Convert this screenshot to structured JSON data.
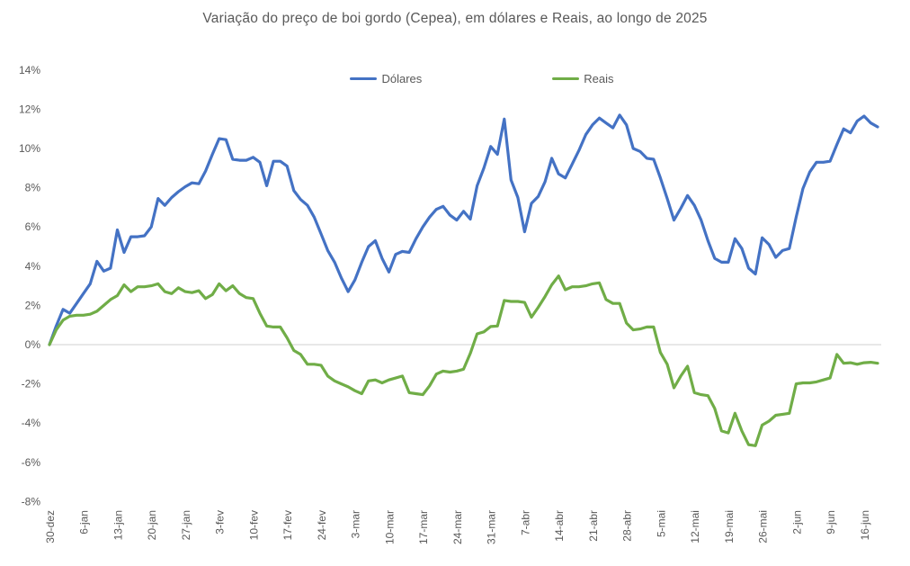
{
  "page": {
    "title": "Variação do preço de boi gordo (Cepea), em dólares e Reais, ao longo de 2025"
  },
  "legend": {
    "items": [
      {
        "label": "Dólares",
        "color": "#4472C4"
      },
      {
        "label": "Reais",
        "color": "#70AD47"
      }
    ]
  },
  "colors": {
    "series_dolares": "#4472C4",
    "series_reais": "#70AD47",
    "zero_gridline": "#D9D9D9",
    "axis_text": "#595959",
    "title_text": "#595959",
    "background": "#FFFFFF"
  },
  "chart_data": {
    "type": "line",
    "title": "Variação do preço de boi gordo (Cepea), em dólares e Reais, ao longo de 2025",
    "unit": "percent",
    "grid": "zero-line-only",
    "legend_position": "top-center",
    "ylim": [
      -8,
      14
    ],
    "y_axis": {
      "min": -8,
      "max": 14,
      "step": 2,
      "tick_labels": [
        "14%",
        "12%",
        "10%",
        "8%",
        "6%",
        "4%",
        "2%",
        "0%",
        "-2%",
        "-4%",
        "-6%",
        "-8%"
      ]
    },
    "x_axis": {
      "ticks_every_n_points": 5,
      "tick_labels": [
        "30-dez",
        "6-jan",
        "13-jan",
        "20-jan",
        "27-jan",
        "3-fev",
        "10-fev",
        "17-fev",
        "24-fev",
        "3-mar",
        "10-mar",
        "17-mar",
        "24-mar",
        "31-mar",
        "7-abr",
        "14-abr",
        "21-abr",
        "28-abr",
        "5-mai",
        "12-mai",
        "19-mai",
        "26-mai",
        "2-jun",
        "9-jun",
        "16-jun"
      ],
      "points_are": "business days, one point per day"
    },
    "series": [
      {
        "name": "Dólares",
        "color": "#4472C4",
        "values": [
          0.0,
          0.95,
          1.8,
          1.6,
          2.1,
          2.6,
          3.1,
          4.25,
          3.75,
          3.9,
          5.85,
          4.7,
          5.5,
          5.5,
          5.55,
          6.0,
          7.45,
          7.1,
          7.5,
          7.8,
          8.05,
          8.25,
          8.2,
          8.85,
          9.7,
          10.5,
          10.45,
          9.45,
          9.4,
          9.4,
          9.55,
          9.3,
          8.1,
          9.35,
          9.35,
          9.1,
          7.85,
          7.4,
          7.1,
          6.5,
          5.65,
          4.8,
          4.2,
          3.4,
          2.7,
          3.3,
          4.2,
          5.0,
          5.3,
          4.4,
          3.7,
          4.6,
          4.75,
          4.7,
          5.4,
          6.0,
          6.5,
          6.9,
          7.05,
          6.6,
          6.35,
          6.8,
          6.4,
          8.1,
          9.0,
          10.1,
          9.7,
          11.5,
          8.4,
          7.5,
          5.75,
          7.2,
          7.55,
          8.3,
          9.5,
          8.7,
          8.5,
          9.2,
          9.9,
          10.7,
          11.2,
          11.55,
          11.3,
          11.05,
          11.7,
          11.2,
          10.0,
          9.85,
          9.5,
          9.45,
          8.5,
          7.45,
          6.35,
          6.95,
          7.6,
          7.1,
          6.35,
          5.3,
          4.4,
          4.2,
          4.2,
          5.4,
          4.9,
          3.9,
          3.6,
          5.45,
          5.1,
          4.45,
          4.8,
          4.9,
          6.5,
          7.95,
          8.8,
          9.3,
          9.3,
          9.35,
          10.2,
          11.0,
          10.8,
          11.4,
          11.65,
          11.3,
          11.1
        ]
      },
      {
        "name": "Reais",
        "color": "#70AD47",
        "values": [
          0.0,
          0.75,
          1.25,
          1.45,
          1.5,
          1.5,
          1.55,
          1.7,
          2.0,
          2.3,
          2.5,
          3.05,
          2.7,
          2.95,
          2.95,
          3.0,
          3.1,
          2.7,
          2.6,
          2.9,
          2.7,
          2.65,
          2.75,
          2.35,
          2.55,
          3.1,
          2.75,
          3.0,
          2.6,
          2.4,
          2.35,
          1.6,
          0.95,
          0.9,
          0.9,
          0.35,
          -0.3,
          -0.5,
          -1.0,
          -1.0,
          -1.05,
          -1.6,
          -1.85,
          -2.0,
          -2.15,
          -2.35,
          -2.5,
          -1.85,
          -1.8,
          -1.95,
          -1.8,
          -1.7,
          -1.6,
          -2.45,
          -2.5,
          -2.55,
          -2.1,
          -1.5,
          -1.35,
          -1.4,
          -1.35,
          -1.25,
          -0.45,
          0.55,
          0.65,
          0.92,
          0.95,
          2.25,
          2.2,
          2.2,
          2.15,
          1.4,
          1.9,
          2.45,
          3.05,
          3.5,
          2.8,
          2.95,
          2.95,
          3.0,
          3.1,
          3.15,
          2.3,
          2.1,
          2.1,
          1.1,
          0.75,
          0.8,
          0.9,
          0.9,
          -0.4,
          -1.0,
          -2.2,
          -1.6,
          -1.1,
          -2.45,
          -2.55,
          -2.6,
          -3.25,
          -4.4,
          -4.5,
          -3.5,
          -4.4,
          -5.1,
          -5.15,
          -4.1,
          -3.9,
          -3.6,
          -3.55,
          -3.5,
          -2.0,
          -1.95,
          -1.95,
          -1.9,
          -1.8,
          -1.7,
          -0.5,
          -0.95,
          -0.92,
          -1.0,
          -0.92,
          -0.9,
          -0.95
        ]
      }
    ]
  }
}
